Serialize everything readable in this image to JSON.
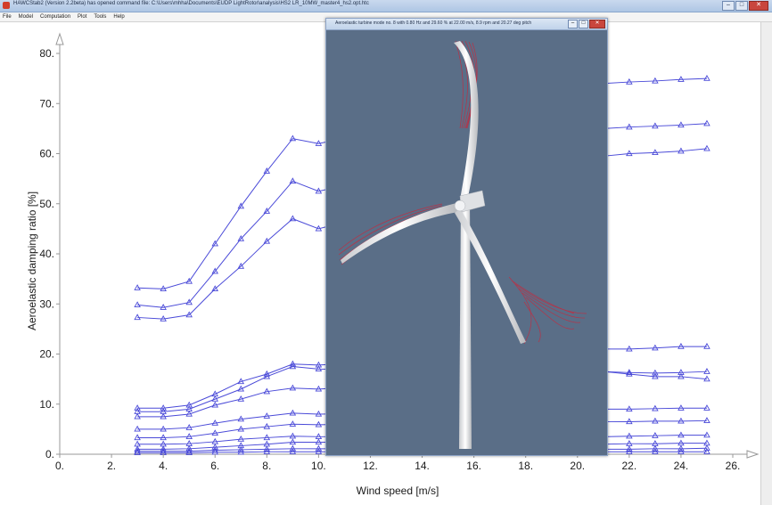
{
  "window": {
    "title": "HAWCStab2 (Version 2.2beta) has opened command file: C:\\Users\\mhha\\Documents\\EUDP LightRotor\\analysis\\HS2 LR_10MW_master4_hs2.opt.htc"
  },
  "menu": [
    "File",
    "Model",
    "Computation",
    "Plot",
    "Tools",
    "Help"
  ],
  "popup": {
    "title": "Aeroelastic turbine mode no.  8 with  0.80 Hz and  29.60 % at 22.00 m/s,  8.9 rpm and  20.27 deg pitch"
  },
  "colors": {
    "series": "#4a4ad8",
    "background_view": "#5a6e87",
    "blade_tip_trace": "#c8283c"
  },
  "chart_data": {
    "type": "line",
    "title": "",
    "xlabel": "Wind speed [m/s]",
    "ylabel": "Aeroelastic damping ratio [%]",
    "xlim": [
      0,
      26
    ],
    "ylim": [
      0,
      80
    ],
    "xticks": [
      "0.",
      "2.",
      "4.",
      "6.",
      "8.",
      "10.",
      "12.",
      "14.",
      "16.",
      "18.",
      "20.",
      "22.",
      "24.",
      "26."
    ],
    "yticks": [
      "0.",
      "10.",
      "20.",
      "30.",
      "40.",
      "50.",
      "60.",
      "70.",
      "80."
    ],
    "grid": false,
    "marker": "triangle",
    "x": [
      3,
      4,
      5,
      6,
      7,
      8,
      9,
      10,
      21,
      22,
      23,
      24,
      25
    ],
    "series": [
      {
        "values": [
          33.2,
          33.0,
          34.5,
          42.0,
          49.5,
          56.5,
          63.0,
          62.0,
          74.0,
          74.3,
          74.5,
          74.8,
          75.0
        ]
      },
      {
        "values": [
          29.8,
          29.3,
          30.3,
          36.5,
          43.0,
          48.5,
          54.5,
          52.5,
          65.0,
          65.3,
          65.5,
          65.7,
          66.0
        ]
      },
      {
        "values": [
          27.3,
          27.0,
          27.8,
          33.0,
          37.5,
          42.5,
          47.0,
          45.0,
          59.5,
          60.0,
          60.2,
          60.5,
          61.0
        ]
      },
      {
        "values": [
          9.2,
          9.2,
          9.8,
          12.0,
          14.5,
          16.0,
          18.0,
          17.8,
          21.0,
          21.0,
          21.2,
          21.5,
          21.5
        ]
      },
      {
        "values": [
          8.5,
          8.5,
          9.0,
          11.0,
          13.0,
          15.5,
          17.5,
          17.0,
          16.5,
          16.3,
          16.2,
          16.3,
          16.5
        ]
      },
      {
        "values": [
          7.5,
          7.5,
          8.0,
          9.8,
          11.0,
          12.5,
          13.2,
          13.0,
          16.5,
          16.0,
          15.5,
          15.5,
          15.0
        ]
      },
      {
        "values": [
          5.0,
          5.0,
          5.3,
          6.2,
          7.0,
          7.6,
          8.2,
          8.0,
          9.0,
          9.0,
          9.1,
          9.2,
          9.2
        ]
      },
      {
        "values": [
          3.3,
          3.3,
          3.5,
          4.2,
          5.0,
          5.5,
          6.0,
          5.9,
          6.5,
          6.5,
          6.6,
          6.6,
          6.7
        ]
      },
      {
        "values": [
          2.0,
          2.0,
          2.1,
          2.5,
          3.0,
          3.3,
          3.6,
          3.5,
          3.5,
          3.6,
          3.7,
          3.8,
          3.8
        ]
      },
      {
        "values": [
          1.0,
          1.0,
          1.1,
          1.4,
          1.7,
          2.0,
          2.4,
          2.4,
          2.0,
          2.1,
          2.1,
          2.2,
          2.2
        ]
      },
      {
        "values": [
          0.6,
          0.6,
          0.6,
          0.8,
          0.9,
          1.0,
          1.1,
          1.1,
          1.0,
          1.0,
          1.1,
          1.1,
          1.2
        ]
      },
      {
        "values": [
          0.3,
          0.3,
          0.3,
          0.4,
          0.4,
          0.5,
          0.5,
          0.5,
          0.5,
          0.5,
          0.5,
          0.5,
          0.5
        ]
      }
    ]
  }
}
